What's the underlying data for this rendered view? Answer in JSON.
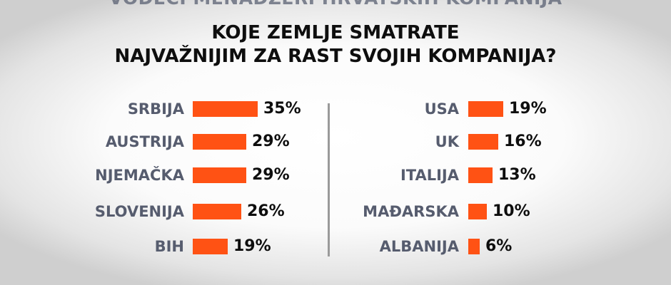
{
  "header": {
    "supertitle": "VODEĆI MENADŽERI HRVATSKIH KOMPANIJA",
    "title_line1": "KOJE ZEMLJE SMATRATE",
    "title_line2": "NAJVAŽNIJIM ZA RAST SVOJIH KOMPANIJA?"
  },
  "colors": {
    "bar": "#ff5214",
    "label": "#565c6e",
    "value": "#0e0e0e"
  },
  "chart_data": [
    {
      "type": "bar",
      "categories": [
        "SRBIJA",
        "AUSTRIJA",
        "NJEMAČKA",
        "SLOVENIJA",
        "BIH"
      ],
      "values": [
        35,
        29,
        29,
        26,
        19
      ],
      "value_labels": [
        "35%",
        "29%",
        "29%",
        "26%",
        "19%"
      ]
    },
    {
      "type": "bar",
      "categories": [
        "USA",
        "UK",
        "ITALIJA",
        "MAĐARSKA",
        "ALBANIJA"
      ],
      "values": [
        19,
        16,
        13,
        10,
        6
      ],
      "value_labels": [
        "19%",
        "16%",
        "13%",
        "10%",
        "6%"
      ]
    }
  ]
}
